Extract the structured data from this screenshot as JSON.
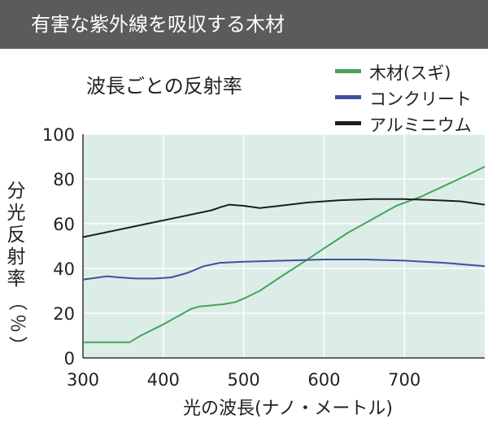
{
  "header": {
    "title": "有害な紫外線を吸収する木材"
  },
  "chart_data": {
    "type": "line",
    "title": "波長ごとの反射率",
    "ylabel_chars": [
      "分",
      "光",
      "反",
      "射",
      "率"
    ],
    "ylabel_unit": [
      "（",
      "％",
      "）"
    ],
    "xlabel": "光の波長(ナノ・メートル)",
    "xlim": [
      300,
      800
    ],
    "ylim": [
      0,
      100
    ],
    "x_ticks": [
      "300",
      "400",
      "500",
      "600",
      "700"
    ],
    "y_ticks": [
      "0",
      "20",
      "40",
      "60",
      "80",
      "100"
    ],
    "grid": true,
    "legend_position": "top-right",
    "background": "#dcede8",
    "series": [
      {
        "name": "木材(スギ)",
        "color": "#45a35c",
        "points": [
          [
            300,
            7
          ],
          [
            330,
            7
          ],
          [
            358,
            7
          ],
          [
            372,
            10
          ],
          [
            400,
            15
          ],
          [
            420,
            19
          ],
          [
            435,
            22
          ],
          [
            445,
            23
          ],
          [
            460,
            23.5
          ],
          [
            475,
            24
          ],
          [
            490,
            25
          ],
          [
            500,
            26.5
          ],
          [
            520,
            30
          ],
          [
            545,
            36
          ],
          [
            575,
            43
          ],
          [
            600,
            49
          ],
          [
            630,
            56
          ],
          [
            660,
            62
          ],
          [
            690,
            68
          ],
          [
            720,
            72
          ],
          [
            750,
            77
          ],
          [
            780,
            82
          ],
          [
            800,
            85.5
          ]
        ]
      },
      {
        "name": "コンクリート",
        "color": "#3f4fa0",
        "points": [
          [
            300,
            35
          ],
          [
            330,
            36.5
          ],
          [
            345,
            36
          ],
          [
            365,
            35.5
          ],
          [
            390,
            35.5
          ],
          [
            410,
            36
          ],
          [
            430,
            38
          ],
          [
            450,
            41
          ],
          [
            470,
            42.5
          ],
          [
            500,
            43
          ],
          [
            550,
            43.5
          ],
          [
            600,
            44
          ],
          [
            650,
            44
          ],
          [
            700,
            43.5
          ],
          [
            750,
            42.5
          ],
          [
            800,
            41
          ]
        ]
      },
      {
        "name": "アルミニウム",
        "color": "#1e1e1e",
        "points": [
          [
            300,
            54
          ],
          [
            340,
            57
          ],
          [
            380,
            60
          ],
          [
            420,
            63
          ],
          [
            460,
            66
          ],
          [
            472,
            67.5
          ],
          [
            482,
            68.5
          ],
          [
            500,
            68
          ],
          [
            520,
            67
          ],
          [
            545,
            68
          ],
          [
            580,
            69.5
          ],
          [
            620,
            70.5
          ],
          [
            660,
            71
          ],
          [
            700,
            71
          ],
          [
            740,
            70.5
          ],
          [
            770,
            70
          ],
          [
            800,
            68.5
          ]
        ]
      }
    ]
  }
}
